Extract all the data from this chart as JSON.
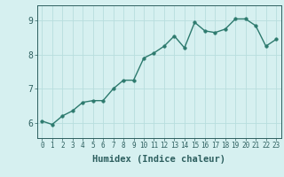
{
  "x": [
    0,
    1,
    2,
    3,
    4,
    5,
    6,
    7,
    8,
    9,
    10,
    11,
    12,
    13,
    14,
    15,
    16,
    17,
    18,
    19,
    20,
    21,
    22,
    23
  ],
  "y": [
    6.05,
    5.95,
    6.2,
    6.35,
    6.6,
    6.65,
    6.65,
    7.0,
    7.25,
    7.25,
    7.9,
    8.05,
    8.25,
    8.55,
    8.2,
    8.95,
    8.7,
    8.65,
    8.75,
    9.05,
    9.05,
    8.85,
    8.25,
    8.45
  ],
  "line_color": "#2d7a6e",
  "marker": "o",
  "markersize": 2.5,
  "linewidth": 1.0,
  "bg_color": "#d6f0f0",
  "grid_color": "#b8dede",
  "tick_color": "#2d5f5f",
  "spine_color": "#2d5f5f",
  "xlabel": "Humidex (Indice chaleur)",
  "xlabel_fontsize": 7.5,
  "ylabel_ticks": [
    6,
    7,
    8,
    9
  ],
  "xlim": [
    -0.5,
    23.5
  ],
  "ylim": [
    5.55,
    9.45
  ],
  "xticks": [
    0,
    1,
    2,
    3,
    4,
    5,
    6,
    7,
    8,
    9,
    10,
    11,
    12,
    13,
    14,
    15,
    16,
    17,
    18,
    19,
    20,
    21,
    22,
    23
  ],
  "tick_fontsize": 5.5
}
